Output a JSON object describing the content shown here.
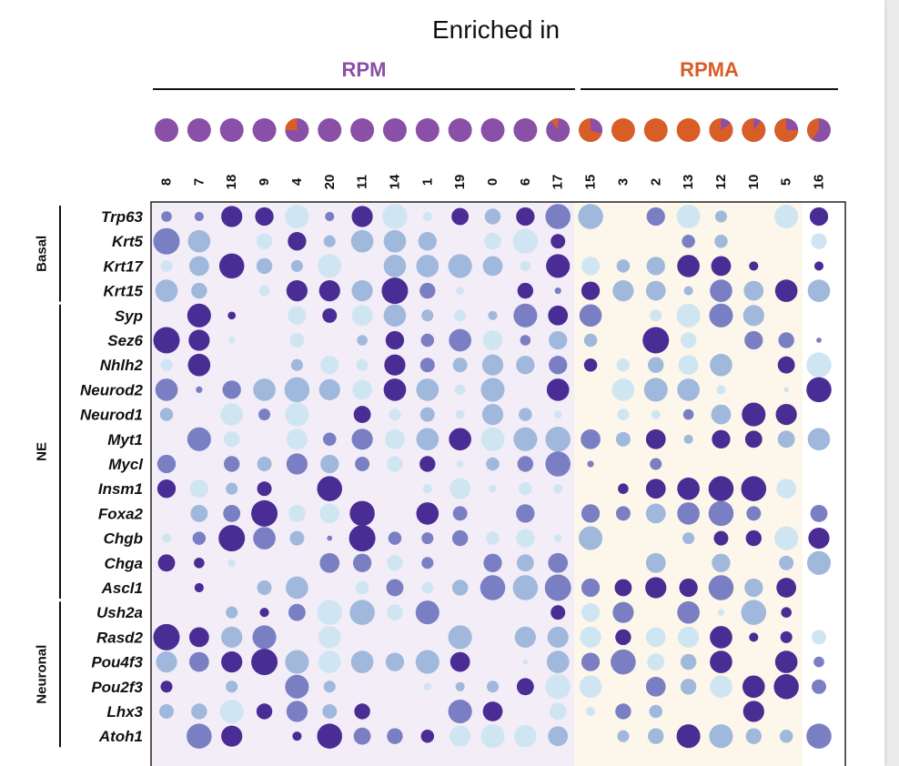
{
  "chart_data": {
    "type": "dotplot",
    "title": "Enriched in",
    "conditions": [
      {
        "name": "RPM",
        "color": "#8a4fa6",
        "clusters": [
          "8",
          "7",
          "18",
          "9",
          "4",
          "20",
          "11",
          "14",
          "1",
          "19",
          "0",
          "6",
          "17"
        ]
      },
      {
        "name": "RPMA",
        "color": "#d95d27",
        "clusters": [
          "15",
          "3",
          "2",
          "13",
          "12",
          "10",
          "5",
          "16"
        ]
      }
    ],
    "clusters": [
      "8",
      "7",
      "18",
      "9",
      "4",
      "20",
      "11",
      "14",
      "1",
      "19",
      "0",
      "6",
      "17",
      "15",
      "3",
      "2",
      "13",
      "12",
      "10",
      "5",
      "16"
    ],
    "composition_rpma_fraction": [
      0,
      0,
      0,
      0,
      0.25,
      0,
      0,
      0,
      0,
      0,
      0,
      0,
      0.1,
      0.7,
      1,
      1,
      1,
      0.85,
      0.9,
      0.75,
      0.4
    ],
    "gene_groups": [
      {
        "name": "Basal",
        "genes": [
          "Trp63",
          "Krt5",
          "Krt17",
          "Krt15"
        ]
      },
      {
        "name": "NE",
        "genes": [
          "Syp",
          "Sez6",
          "Nhlh2",
          "Neurod2",
          "Neurod1",
          "Myt1",
          "Mycl",
          "Insm1",
          "Foxa2",
          "Chgb",
          "Chga",
          "Ascl1"
        ]
      },
      {
        "name": "Neuronal",
        "genes": [
          "Ush2a",
          "Rasd2",
          "Pou4f3",
          "Pou2f3",
          "Lhx3",
          "Atoh1"
        ]
      }
    ],
    "genes": [
      "Trp63",
      "Krt5",
      "Krt17",
      "Krt15",
      "Syp",
      "Sez6",
      "Nhlh2",
      "Neurod2",
      "Neurod1",
      "Myt1",
      "Mycl",
      "Insm1",
      "Foxa2",
      "Chgb",
      "Chga",
      "Ascl1",
      "Ush2a",
      "Rasd2",
      "Pou4f3",
      "Pou2f3",
      "Lhx3",
      "Atoh1"
    ],
    "size_scale": "fraction of cells expressing (0-1)",
    "color_scale": "relative expression level (0 low, 3 high)",
    "color_levels": [
      "#cfe6f2",
      "#9fb8dc",
      "#7a7fc4",
      "#4a2d94"
    ],
    "sizes": [
      [
        0.4,
        0.35,
        0.8,
        0.7,
        0.9,
        0.35,
        0.8,
        0.95,
        0.35,
        0.65,
        0.6,
        0.7,
        0.95,
        0.95,
        0,
        0.7,
        0.9,
        0.45,
        0,
        0.9,
        0.7
      ],
      [
        1,
        0.85,
        0,
        0.6,
        0.7,
        0.45,
        0.85,
        0.85,
        0.7,
        0,
        0.65,
        0.95,
        0.55,
        0,
        0,
        0,
        0.5,
        0.5,
        0,
        0,
        0.6
      ],
      [
        0.45,
        0.75,
        0.95,
        0.6,
        0.45,
        0.9,
        0,
        0.85,
        0.85,
        0.9,
        0.75,
        0.4,
        0.9,
        0.7,
        0.5,
        0.7,
        0.85,
        0.75,
        0.35,
        0,
        0.35
      ],
      [
        0.85,
        0.6,
        0,
        0.4,
        0.8,
        0.8,
        0.8,
        1,
        0.6,
        0.3,
        0,
        0.6,
        0.25,
        0.7,
        0.8,
        0.75,
        0.35,
        0.85,
        0.75,
        0.85,
        0.85
      ],
      [
        0,
        0.9,
        0.3,
        0,
        0.7,
        0.55,
        0.8,
        0.85,
        0.45,
        0.45,
        0.35,
        0.9,
        0.75,
        0.85,
        0,
        0.45,
        0.9,
        0.9,
        0.8,
        0,
        0
      ],
      [
        1,
        0.8,
        0.25,
        0,
        0.55,
        0,
        0.4,
        0.7,
        0.5,
        0.85,
        0.75,
        0.4,
        0.7,
        0.5,
        0,
        1,
        0.6,
        0,
        0.7,
        0.6,
        0.2
      ],
      [
        0.45,
        0.85,
        0,
        0,
        0.45,
        0.7,
        0.45,
        0.8,
        0.55,
        0.55,
        0.8,
        0.7,
        0.7,
        0.5,
        0.5,
        0.6,
        0.75,
        0.85,
        0,
        0.65,
        0.95
      ],
      [
        0.85,
        0.25,
        0.7,
        0.85,
        0.95,
        0.8,
        0.75,
        0.85,
        0.85,
        0.4,
        0.9,
        0,
        0.85,
        0,
        0.85,
        0.9,
        0.85,
        0.35,
        0,
        0.2,
        0.95
      ],
      [
        0.5,
        0,
        0.85,
        0.45,
        0.9,
        0,
        0.65,
        0.45,
        0.55,
        0.35,
        0.8,
        0.5,
        0.3,
        0,
        0.45,
        0.35,
        0.4,
        0.75,
        0.9,
        0.8,
        0
      ],
      [
        0,
        0.9,
        0.6,
        0,
        0.8,
        0.5,
        0.8,
        0.75,
        0.85,
        0.85,
        0.9,
        0.9,
        0.95,
        0.75,
        0.55,
        0.75,
        0.35,
        0.7,
        0.65,
        0.65,
        0.85
      ],
      [
        0.7,
        0,
        0.6,
        0.55,
        0.8,
        0.7,
        0.55,
        0.6,
        0.6,
        0.25,
        0.5,
        0.6,
        0.95,
        0.25,
        0,
        0.45,
        0,
        0,
        0,
        0,
        0
      ],
      [
        0.7,
        0.7,
        0.45,
        0.55,
        0,
        0.95,
        0,
        0,
        0.35,
        0.8,
        0.3,
        0.5,
        0.35,
        0,
        0.4,
        0.75,
        0.85,
        0.95,
        0.95,
        0.75,
        0
      ],
      [
        0,
        0.65,
        0.65,
        1,
        0.65,
        0.75,
        0.95,
        0,
        0.85,
        0.55,
        0,
        0.7,
        0,
        0.7,
        0.55,
        0.75,
        0.85,
        0.95,
        0.55,
        0,
        0.65
      ],
      [
        0.35,
        0.5,
        1,
        0.85,
        0.55,
        0.2,
        1,
        0.5,
        0.45,
        0.6,
        0.5,
        0.7,
        0.3,
        0.9,
        0,
        0,
        0.45,
        0.55,
        0.6,
        0.9,
        0.8
      ],
      [
        0.65,
        0.4,
        0.3,
        0,
        0,
        0.75,
        0.7,
        0.6,
        0.45,
        0,
        0.7,
        0.65,
        0.75,
        0,
        0,
        0.75,
        0,
        0.7,
        0,
        0.55,
        0.9
      ],
      [
        0,
        0.35,
        0,
        0.55,
        0.85,
        0,
        0.5,
        0.65,
        0.45,
        0.6,
        0.95,
        0.95,
        1,
        0.7,
        0.65,
        0.8,
        0.7,
        0.95,
        0.7,
        0.75,
        0
      ],
      [
        0,
        0,
        0.45,
        0.35,
        0.65,
        0.95,
        0.95,
        0.6,
        0.9,
        0,
        0,
        0,
        0.55,
        0.7,
        0.8,
        0,
        0.85,
        0.25,
        0.95,
        0.4,
        0
      ],
      [
        1,
        0.75,
        0.8,
        0.9,
        0,
        0.85,
        0,
        0,
        0,
        0.9,
        0,
        0.8,
        0.8,
        0.8,
        0.6,
        0.75,
        0.8,
        0.85,
        0.35,
        0.45,
        0.55
      ],
      [
        0.8,
        0.75,
        0.8,
        1,
        0.9,
        0.85,
        0.85,
        0.7,
        0.9,
        0.75,
        0,
        0.2,
        0.85,
        0.7,
        0.95,
        0.65,
        0.6,
        0.85,
        0,
        0.85,
        0.4
      ],
      [
        0.45,
        0,
        0.45,
        0,
        0.9,
        0.45,
        0,
        0,
        0.3,
        0.35,
        0.45,
        0.65,
        0.95,
        0.85,
        0,
        0.75,
        0.6,
        0.85,
        0.85,
        0.95,
        0.55
      ],
      [
        0.55,
        0.6,
        0.9,
        0.6,
        0.8,
        0.55,
        0.6,
        0,
        0,
        0.9,
        0.75,
        0,
        0.65,
        0.35,
        0.6,
        0.5,
        0,
        0,
        0.8,
        0,
        0
      ],
      [
        0,
        0.95,
        0.8,
        0,
        0.35,
        0.95,
        0.65,
        0.6,
        0.5,
        0.8,
        0.9,
        0.85,
        0.75,
        0,
        0.45,
        0.6,
        0.9,
        0.9,
        0.6,
        0.5,
        0.95
      ]
    ],
    "colors": [
      [
        2,
        2,
        3,
        3,
        0,
        2,
        3,
        0,
        0,
        3,
        1,
        3,
        2,
        1,
        0,
        2,
        0,
        1,
        0,
        0,
        3
      ],
      [
        2,
        1,
        0,
        0,
        3,
        1,
        1,
        1,
        1,
        0,
        0,
        0,
        3,
        0,
        0,
        0,
        2,
        1,
        0,
        0,
        0
      ],
      [
        0,
        1,
        3,
        1,
        1,
        0,
        0,
        1,
        1,
        1,
        1,
        0,
        3,
        0,
        1,
        1,
        3,
        3,
        3,
        0,
        3
      ],
      [
        1,
        1,
        0,
        0,
        3,
        3,
        1,
        3,
        2,
        0,
        0,
        3,
        2,
        3,
        1,
        1,
        1,
        2,
        1,
        3,
        1
      ],
      [
        0,
        3,
        3,
        0,
        0,
        3,
        0,
        1,
        1,
        0,
        1,
        2,
        3,
        2,
        0,
        0,
        0,
        2,
        1,
        0,
        0
      ],
      [
        3,
        3,
        0,
        0,
        0,
        0,
        1,
        3,
        2,
        2,
        0,
        2,
        1,
        1,
        0,
        3,
        0,
        0,
        2,
        2,
        2
      ],
      [
        0,
        3,
        0,
        0,
        1,
        0,
        0,
        3,
        2,
        1,
        1,
        1,
        2,
        3,
        0,
        1,
        0,
        1,
        0,
        3,
        0
      ],
      [
        2,
        2,
        2,
        1,
        1,
        1,
        0,
        3,
        1,
        0,
        1,
        0,
        3,
        0,
        0,
        1,
        1,
        0,
        0,
        0,
        3
      ],
      [
        1,
        0,
        0,
        2,
        0,
        0,
        3,
        0,
        1,
        0,
        1,
        1,
        0,
        0,
        0,
        0,
        2,
        1,
        3,
        3,
        0
      ],
      [
        0,
        2,
        0,
        0,
        0,
        2,
        2,
        0,
        1,
        3,
        0,
        1,
        1,
        2,
        1,
        3,
        1,
        3,
        3,
        1,
        1
      ],
      [
        2,
        0,
        2,
        1,
        2,
        1,
        2,
        0,
        3,
        0,
        1,
        2,
        2,
        2,
        0,
        2,
        0,
        0,
        0,
        0,
        0
      ],
      [
        3,
        0,
        1,
        3,
        0,
        3,
        0,
        0,
        0,
        0,
        0,
        0,
        0,
        0,
        3,
        3,
        3,
        3,
        3,
        0,
        0
      ],
      [
        0,
        1,
        2,
        3,
        0,
        0,
        3,
        0,
        3,
        2,
        0,
        2,
        0,
        2,
        2,
        1,
        2,
        2,
        2,
        0,
        2
      ],
      [
        0,
        2,
        3,
        2,
        1,
        2,
        3,
        2,
        2,
        2,
        0,
        0,
        0,
        1,
        0,
        0,
        1,
        3,
        3,
        0,
        3
      ],
      [
        3,
        3,
        0,
        0,
        0,
        2,
        2,
        0,
        2,
        0,
        2,
        1,
        2,
        0,
        0,
        1,
        0,
        1,
        0,
        1,
        1
      ],
      [
        0,
        3,
        0,
        1,
        1,
        0,
        0,
        2,
        0,
        1,
        2,
        1,
        2,
        2,
        3,
        3,
        3,
        2,
        1,
        3,
        0
      ],
      [
        0,
        0,
        1,
        3,
        2,
        0,
        1,
        0,
        2,
        0,
        0,
        0,
        3,
        0,
        2,
        0,
        2,
        0,
        1,
        3,
        0
      ],
      [
        3,
        3,
        1,
        2,
        0,
        0,
        0,
        0,
        0,
        1,
        0,
        1,
        1,
        0,
        3,
        0,
        0,
        3,
        3,
        3,
        0
      ],
      [
        1,
        2,
        3,
        3,
        1,
        0,
        1,
        1,
        1,
        3,
        0,
        0,
        1,
        2,
        2,
        0,
        1,
        3,
        0,
        3,
        2
      ],
      [
        3,
        0,
        1,
        0,
        2,
        1,
        0,
        0,
        0,
        1,
        1,
        3,
        0,
        0,
        0,
        2,
        1,
        0,
        3,
        3,
        2
      ],
      [
        1,
        1,
        0,
        3,
        2,
        1,
        3,
        0,
        0,
        2,
        3,
        0,
        0,
        0,
        2,
        1,
        0,
        0,
        3,
        0,
        0
      ],
      [
        0,
        2,
        3,
        0,
        3,
        3,
        2,
        2,
        3,
        0,
        0,
        0,
        1,
        0,
        1,
        1,
        3,
        1,
        1,
        1,
        2
      ]
    ],
    "xlabel": "",
    "ylabel": ""
  }
}
